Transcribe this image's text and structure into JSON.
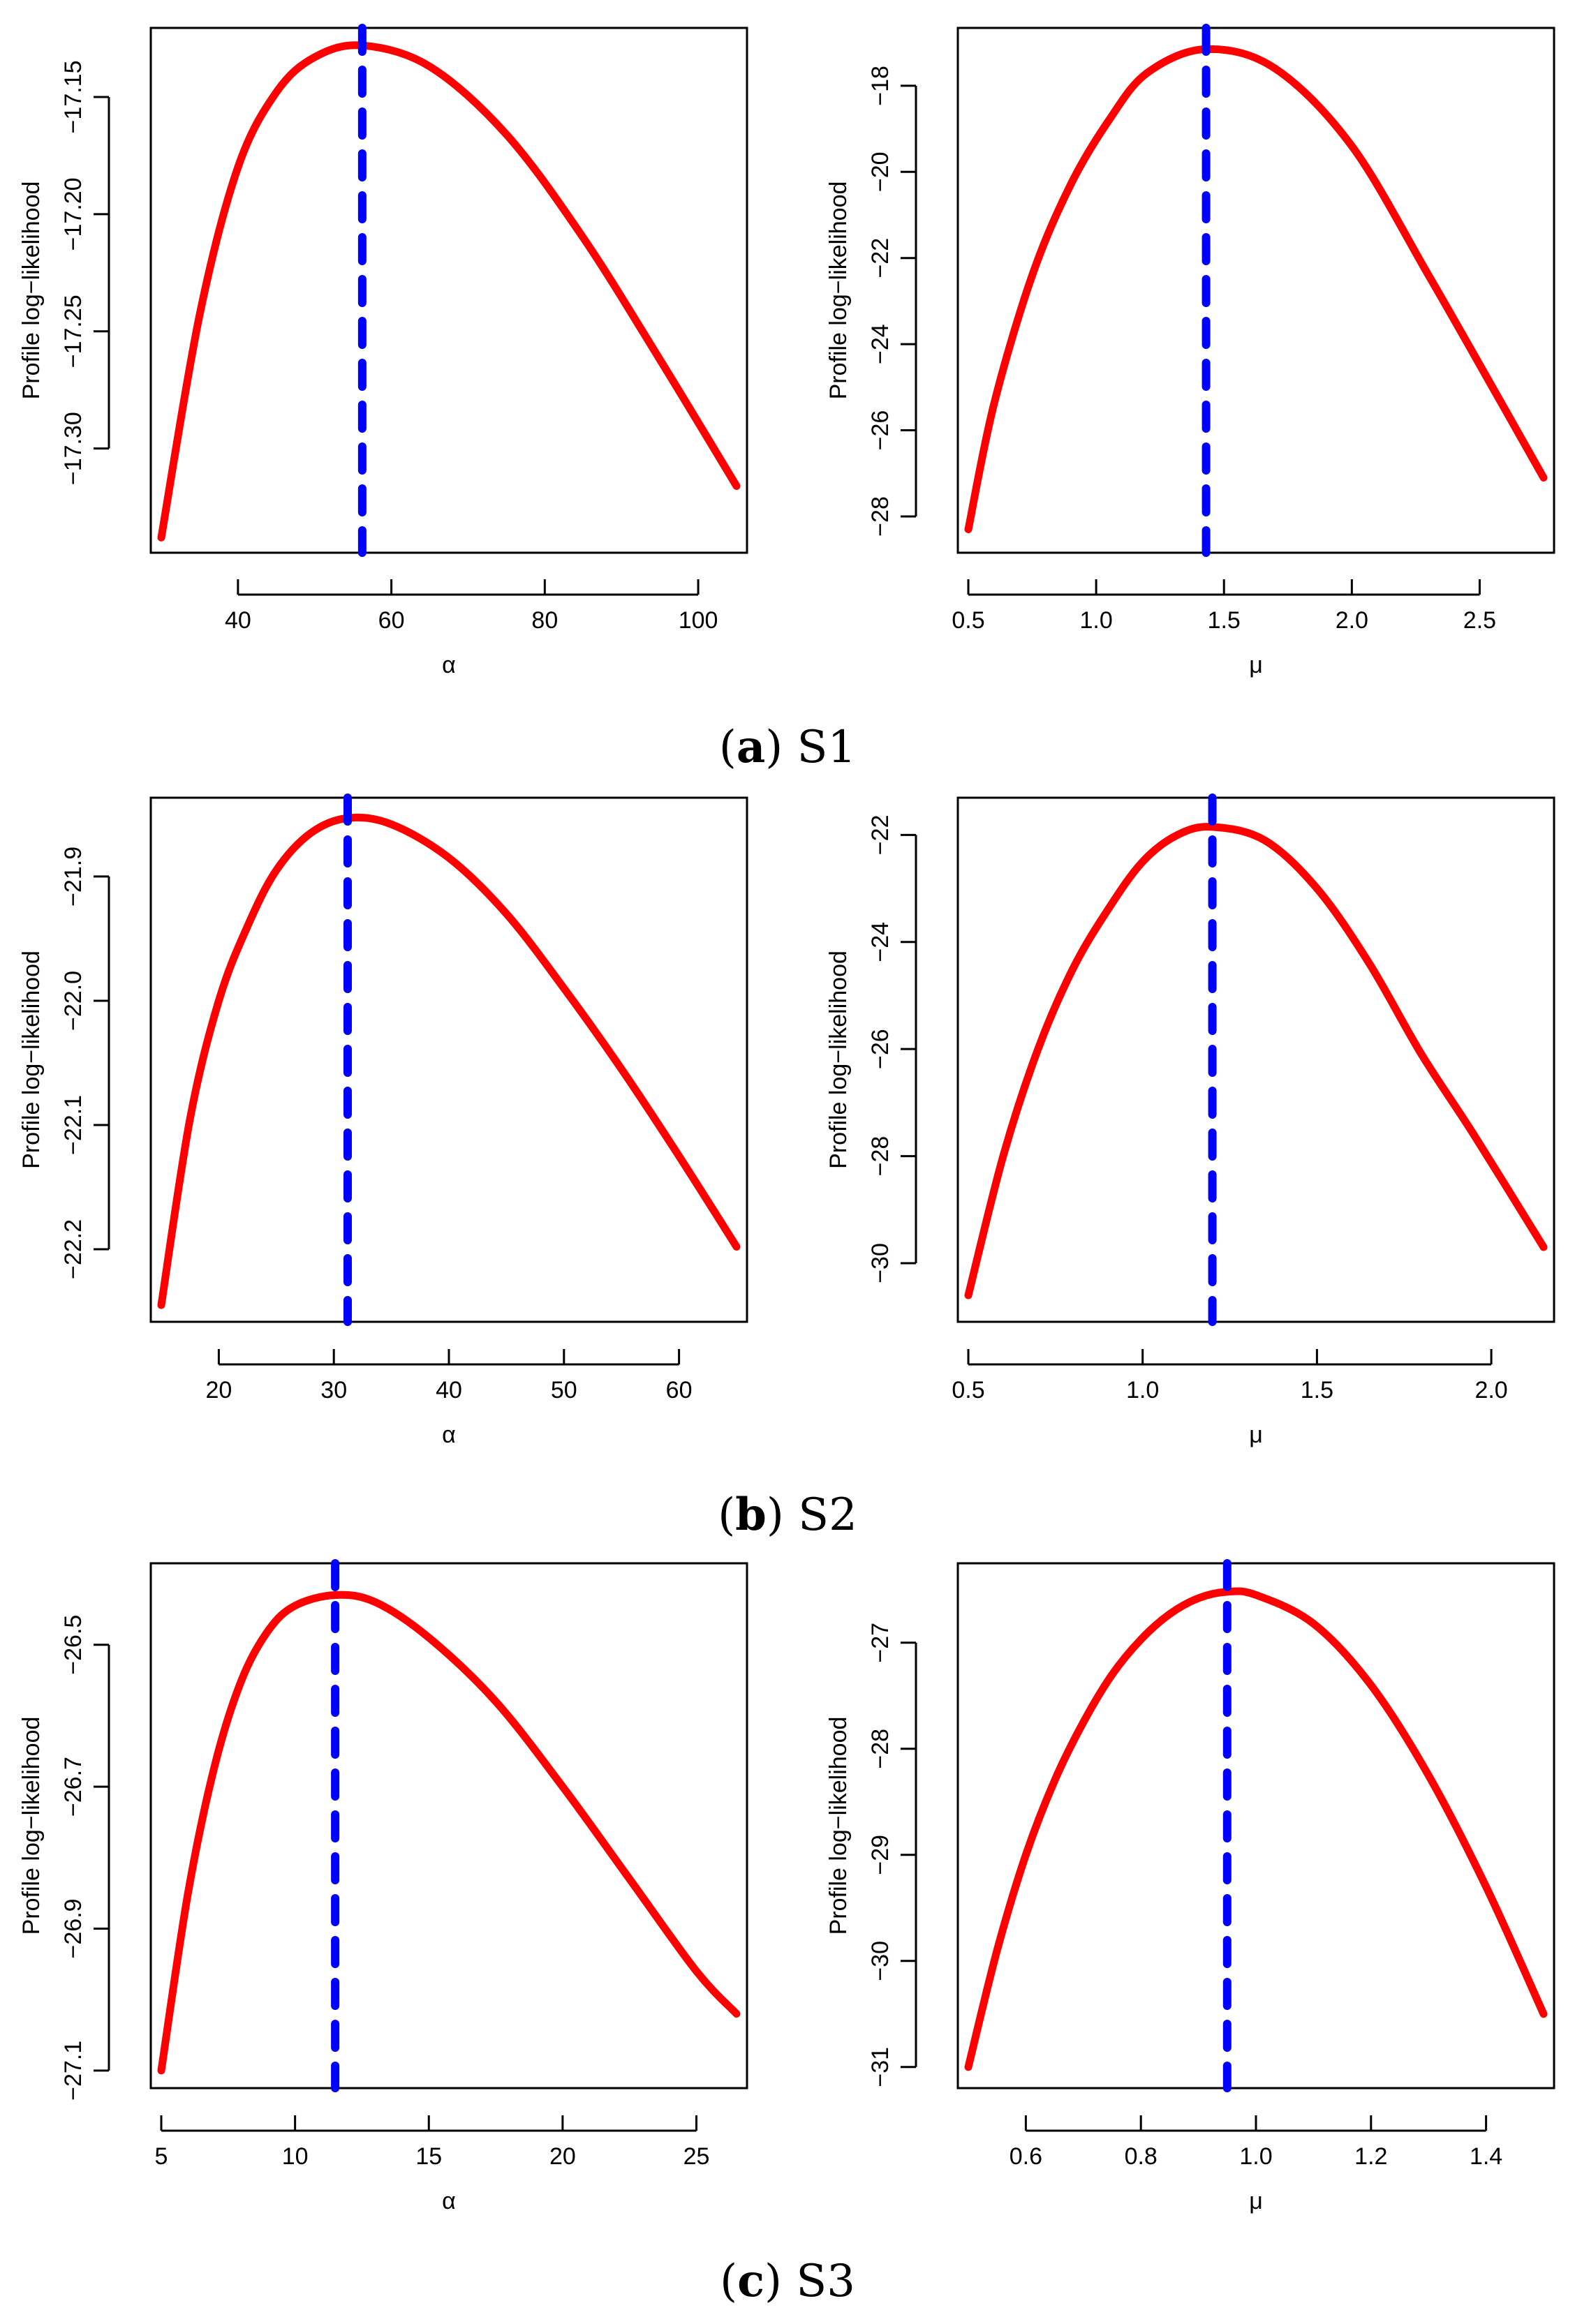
{
  "figure": {
    "captions": [
      {
        "letter": "a",
        "label": "S1"
      },
      {
        "letter": "b",
        "label": "S2"
      },
      {
        "letter": "c",
        "label": "S3"
      }
    ]
  },
  "colors": {
    "curve": "#ff0000",
    "mle_line": "#0000ff",
    "axis": "#000000"
  },
  "chart_data": [
    {
      "type": "line",
      "panel": "S1-alpha",
      "xlabel": "α",
      "ylabel": "Profile log−likelihood",
      "xlim": [
        30,
        105
      ],
      "ylim": [
        -17.34,
        -17.125
      ],
      "xticks": [
        40,
        60,
        80,
        100
      ],
      "xtick_labels": [
        "40",
        "60",
        "80",
        "100"
      ],
      "yticks": [
        -17.15,
        -17.2,
        -17.25,
        -17.3
      ],
      "ytick_labels": [
        "−17.15",
        "−17.20",
        "−17.25",
        "−17.30"
      ],
      "mle": 56.2,
      "x": [
        30,
        35,
        40,
        45,
        50,
        56.2,
        65,
        75,
        85,
        95,
        105
      ],
      "y": [
        -17.338,
        -17.243,
        -17.18,
        -17.148,
        -17.133,
        -17.128,
        -17.137,
        -17.166,
        -17.21,
        -17.262,
        -17.316
      ]
    },
    {
      "type": "line",
      "panel": "S1-mu",
      "xlabel": "μ",
      "ylabel": "Profile log−likelihood",
      "xlim": [
        0.5,
        2.75
      ],
      "ylim": [
        -28.6,
        -16.9
      ],
      "xticks": [
        0.5,
        1.0,
        1.5,
        2.0,
        2.5
      ],
      "xtick_labels": [
        "0.5",
        "1.0",
        "1.5",
        "2.0",
        "2.5"
      ],
      "yticks": [
        -18,
        -20,
        -22,
        -24,
        -26,
        -28
      ],
      "ytick_labels": [
        "−18",
        "−20",
        "−22",
        "−24",
        "−26",
        "−28"
      ],
      "mle": 1.43,
      "x": [
        0.5,
        0.6,
        0.75,
        0.9,
        1.05,
        1.2,
        1.43,
        1.7,
        2.0,
        2.3,
        2.55,
        2.75
      ],
      "y": [
        -28.3,
        -25.4,
        -22.4,
        -20.3,
        -18.8,
        -17.7,
        -17.15,
        -17.6,
        -19.4,
        -22.4,
        -25.0,
        -27.1
      ]
    },
    {
      "type": "line",
      "panel": "S2-alpha",
      "xlabel": "α",
      "ylabel": "Profile log−likelihood",
      "xlim": [
        15,
        65
      ],
      "ylim": [
        -22.25,
        -21.845
      ],
      "xticks": [
        20,
        30,
        40,
        50,
        60
      ],
      "xtick_labels": [
        "20",
        "30",
        "40",
        "50",
        "60"
      ],
      "yticks": [
        -21.9,
        -22.0,
        -22.1,
        -22.2
      ],
      "ytick_labels": [
        "−21.9",
        "−22.0",
        "−22.1",
        "−22.2"
      ],
      "mle": 31.2,
      "x": [
        15,
        17.5,
        20,
        22.5,
        25,
        28,
        31.2,
        35,
        40,
        45,
        50,
        55,
        60,
        65
      ],
      "y": [
        -22.245,
        -22.095,
        -22.0,
        -21.94,
        -21.895,
        -21.865,
        -21.853,
        -21.858,
        -21.885,
        -21.93,
        -21.99,
        -22.055,
        -22.125,
        -22.198
      ]
    },
    {
      "type": "line",
      "panel": "S2-mu",
      "xlabel": "μ",
      "ylabel": "Profile log−likelihood",
      "xlim": [
        0.5,
        2.15
      ],
      "ylim": [
        -30.9,
        -21.5
      ],
      "xticks": [
        0.5,
        1.0,
        1.5,
        2.0
      ],
      "xtick_labels": [
        "0.5",
        "1.0",
        "1.5",
        "2.0"
      ],
      "yticks": [
        -22,
        -24,
        -26,
        -28,
        -30
      ],
      "ytick_labels": [
        "−22",
        "−24",
        "−26",
        "−28",
        "−30"
      ],
      "mle": 1.2,
      "x": [
        0.5,
        0.6,
        0.7,
        0.8,
        0.9,
        1.0,
        1.1,
        1.2,
        1.35,
        1.5,
        1.65,
        1.8,
        1.95,
        2.15
      ],
      "y": [
        -30.6,
        -28.0,
        -26.0,
        -24.5,
        -23.4,
        -22.5,
        -22.0,
        -21.85,
        -22.1,
        -23.0,
        -24.4,
        -26.1,
        -27.6,
        -29.7
      ]
    },
    {
      "type": "line",
      "panel": "S3-alpha",
      "xlabel": "α",
      "ylabel": "Profile log−likelihood",
      "xlim": [
        5,
        26.5
      ],
      "ylim": [
        -27.11,
        -26.4
      ],
      "xticks": [
        5,
        10,
        15,
        20,
        25
      ],
      "xtick_labels": [
        "5",
        "10",
        "15",
        "20",
        "25"
      ],
      "yticks": [
        -26.5,
        -26.7,
        -26.9,
        -27.1
      ],
      "ytick_labels": [
        "−26.5",
        "−26.7",
        "−26.9",
        "−27.1"
      ],
      "mle": 11.5,
      "x": [
        5,
        6,
        7,
        8,
        9,
        10,
        11.5,
        13,
        15,
        17.5,
        20,
        22.5,
        25,
        26.5
      ],
      "y": [
        -27.1,
        -26.85,
        -26.67,
        -26.55,
        -26.48,
        -26.445,
        -26.43,
        -26.44,
        -26.49,
        -26.58,
        -26.7,
        -26.83,
        -26.96,
        -27.02
      ]
    },
    {
      "type": "line",
      "panel": "S3-mu",
      "xlabel": "μ",
      "ylabel": "Profile log−likelihood",
      "xlim": [
        0.5,
        1.5
      ],
      "ylim": [
        -31.1,
        -26.35
      ],
      "xticks": [
        0.6,
        0.8,
        1.0,
        1.2,
        1.4
      ],
      "xtick_labels": [
        "0.6",
        "0.8",
        "1.0",
        "1.2",
        "1.4"
      ],
      "yticks": [
        -27,
        -28,
        -29,
        -30,
        -31
      ],
      "ytick_labels": [
        "−27",
        "−28",
        "−29",
        "−30",
        "−31"
      ],
      "mle": 0.95,
      "x": [
        0.5,
        0.55,
        0.6,
        0.65,
        0.7,
        0.75,
        0.8,
        0.85,
        0.9,
        0.95,
        1.0,
        1.1,
        1.2,
        1.3,
        1.4,
        1.5
      ],
      "y": [
        -31.0,
        -29.9,
        -29.0,
        -28.3,
        -27.75,
        -27.3,
        -26.97,
        -26.73,
        -26.58,
        -26.52,
        -26.55,
        -26.82,
        -27.4,
        -28.25,
        -29.3,
        -30.5
      ]
    }
  ]
}
